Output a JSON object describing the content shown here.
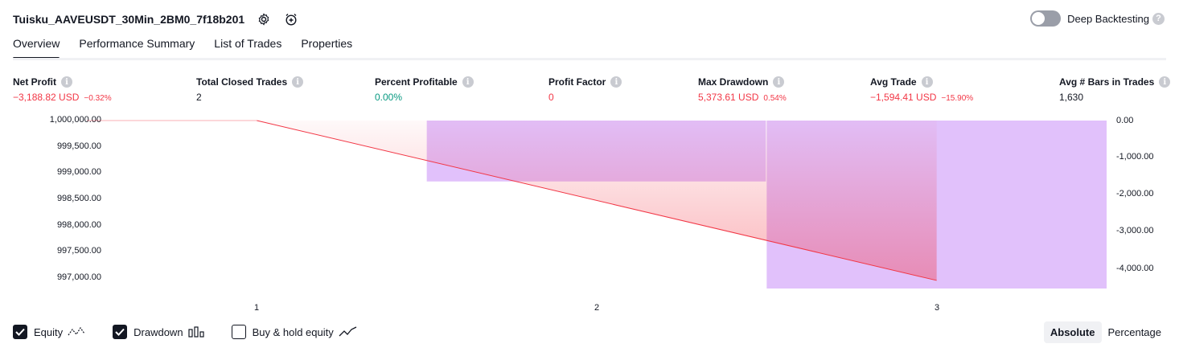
{
  "header": {
    "title": "Tuisku_AAVEUSDT_30Min_2BM0_7f18b201",
    "deep_backtesting_label": "Deep Backtesting"
  },
  "tabs": [
    {
      "label": "Overview",
      "active": true
    },
    {
      "label": "Performance Summary"
    },
    {
      "label": "List of Trades"
    },
    {
      "label": "Properties"
    }
  ],
  "metrics": [
    {
      "label": "Net Profit",
      "value": "−3,188.82 USD",
      "pct": "−0.32%"
    },
    {
      "label": "Total Closed Trades",
      "value": "2"
    },
    {
      "label": "Percent Profitable",
      "value": "0.00%"
    },
    {
      "label": "Profit Factor",
      "value": "0"
    },
    {
      "label": "Max Drawdown",
      "value": "5,373.61 USD",
      "pct": "0.54%"
    },
    {
      "label": "Avg Trade",
      "value": "−1,594.41 USD",
      "pct": "−15.90%"
    },
    {
      "label": "Avg # Bars in Trades",
      "value": "1,630"
    }
  ],
  "colors": {
    "negative": "#f23645",
    "positive": "#089981",
    "drawdown_bar": "#e1c1fb",
    "equity_line": "#f23645"
  },
  "chart_data": {
    "type": "area",
    "x_ticks": [
      "1",
      "2",
      "3"
    ],
    "y_left_ticks": [
      "1,000,000.00",
      "999,500.00",
      "999,000.00",
      "998,500.00",
      "998,000.00",
      "997,500.00",
      "997,000.00"
    ],
    "y_right_ticks": [
      "0.00",
      "-1,000.00",
      "-2,000.00",
      "-3,000.00",
      "-4,000.00"
    ],
    "equity": {
      "name": "Equity",
      "x": [
        1,
        3
      ],
      "values": [
        1000000,
        996811.18
      ]
    },
    "drawdown": {
      "name": "Drawdown",
      "bars": [
        {
          "from": 1.5,
          "to": 2.5,
          "value": -1650
        },
        {
          "from": 2.5,
          "to": 3.5,
          "value": -4550
        }
      ]
    },
    "y_left_range": [
      996650,
      1000000
    ],
    "y_right_range": [
      -4550,
      0
    ],
    "x_range": [
      0.5,
      3.5
    ]
  },
  "legend": {
    "equity_label": "Equity",
    "drawdown_label": "Drawdown",
    "buyhold_label": "Buy & hold equity",
    "equity_checked": true,
    "drawdown_checked": true,
    "buyhold_checked": false
  },
  "mode": {
    "absolute_label": "Absolute",
    "percentage_label": "Percentage"
  }
}
